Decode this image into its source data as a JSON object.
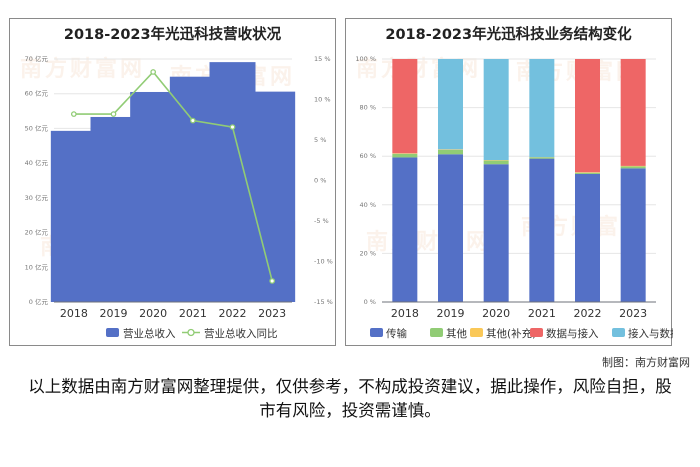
{
  "credit": "制图：南方财富网",
  "disclaimer": "以上数据由南方财富网整理提供，仅供参考，不构成投资建议，据此操作，风险自担，股市有风险，投资需谨慎。",
  "watermark": "南方财富网",
  "chart_data": [
    {
      "type": "bar",
      "title": "2018-2023年光迅科技营收状况",
      "categories": [
        "2018",
        "2019",
        "2020",
        "2021",
        "2022",
        "2023"
      ],
      "series": [
        {
          "name": "营业总收入",
          "type": "bar",
          "axis": "left",
          "color": "#5470c6",
          "values": [
            49.3,
            53.3,
            60.5,
            64.9,
            69.1,
            60.6
          ]
        },
        {
          "name": "营业总收入同比",
          "type": "line",
          "axis": "right",
          "color": "#91cc75",
          "values": [
            8.2,
            8.2,
            13.4,
            7.4,
            6.6,
            -12.4
          ]
        }
      ],
      "y_left": {
        "min": 0,
        "max": 70,
        "ticks": [
          0,
          10,
          20,
          30,
          40,
          50,
          60,
          70
        ],
        "unit": " 亿元"
      },
      "y_right": {
        "min": -15,
        "max": 15,
        "ticks": [
          -15,
          -10,
          -5,
          0,
          5,
          10,
          15
        ],
        "unit": " %"
      },
      "legend": "bottom"
    },
    {
      "type": "bar",
      "stacked": true,
      "title": "2018-2023年光迅科技业务结构变化",
      "categories": [
        "2018",
        "2019",
        "2020",
        "2021",
        "2022",
        "2023"
      ],
      "series": [
        {
          "name": "传输",
          "color": "#5470c6",
          "values": [
            59.5,
            60.8,
            56.7,
            59.0,
            52.7,
            55.0
          ]
        },
        {
          "name": "其他",
          "color": "#91cc75",
          "values": [
            1.5,
            1.8,
            1.5,
            0.5,
            0.5,
            0.8
          ]
        },
        {
          "name": "其他(补充)",
          "color": "#fac858",
          "values": [
            0.2,
            0.2,
            0.2,
            0.1,
            0.2,
            0.2
          ]
        },
        {
          "name": "数据与接入",
          "color": "#ee6666",
          "values": [
            38.8,
            0,
            0,
            0,
            46.6,
            44.0
          ]
        },
        {
          "name": "接入与数据",
          "color": "#73c0de",
          "values": [
            0,
            37.2,
            41.6,
            40.4,
            0,
            0
          ]
        }
      ],
      "y": {
        "min": 0,
        "max": 100,
        "ticks": [
          0,
          20,
          40,
          60,
          80,
          100
        ],
        "unit": " %"
      },
      "legend": "bottom"
    }
  ]
}
